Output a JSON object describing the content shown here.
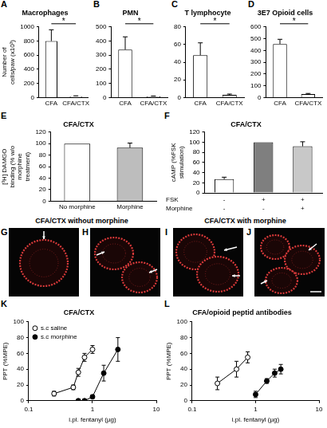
{
  "chart_data": [
    {
      "panel": "A",
      "type": "bar",
      "title": "Macrophages",
      "y_label": "Number of cells/paw (x10³)",
      "categories": [
        "CFA",
        "CFA/CTX"
      ],
      "values": [
        800,
        20
      ],
      "errors": [
        160,
        5
      ],
      "colors": [
        "#ffffff",
        "#ffffff"
      ],
      "ylim": [
        0,
        1000
      ],
      "yticks": [
        0,
        200,
        400,
        600,
        800,
        1000
      ],
      "annotation": "*"
    },
    {
      "panel": "B",
      "type": "bar",
      "title": "PMN",
      "categories": [
        "CFA",
        "CFA/CTX"
      ],
      "values": [
        340,
        8
      ],
      "errors": [
        90,
        3
      ],
      "colors": [
        "#ffffff",
        "#ffffff"
      ],
      "ylim": [
        0,
        500
      ],
      "yticks": [
        0,
        100,
        200,
        300,
        400,
        500
      ],
      "annotation": "*"
    },
    {
      "panel": "C",
      "type": "bar",
      "title": "T lymphocyte",
      "categories": [
        "CFA",
        "CFA/CTX"
      ],
      "values": [
        48,
        3
      ],
      "errors": [
        14,
        1
      ],
      "colors": [
        "#ffffff",
        "#ffffff"
      ],
      "ylim": [
        0,
        80
      ],
      "yticks": [
        0,
        20,
        40,
        60,
        80
      ],
      "annotation": "*"
    },
    {
      "panel": "D",
      "type": "bar",
      "title": "3E7 Opioid cells",
      "categories": [
        "CFA",
        "CFA/CTX"
      ],
      "values": [
        455,
        30
      ],
      "errors": [
        40,
        5
      ],
      "colors": [
        "#ffffff",
        "#ffffff"
      ],
      "ylim": [
        0,
        600
      ],
      "yticks": [
        0,
        100,
        200,
        300,
        400,
        500,
        600
      ],
      "annotation": "*"
    },
    {
      "panel": "E",
      "type": "bar",
      "title": "CFA/CTX",
      "y_label": "[³H] DAMGO binding (% w/o morphine treatment)",
      "categories": [
        "No morphine",
        "Morphine"
      ],
      "values": [
        100,
        93
      ],
      "errors": [
        0,
        8
      ],
      "colors": [
        "#ffffff",
        "#bdbdbd"
      ],
      "ylim": [
        0,
        120
      ],
      "yticks": [
        0,
        20,
        40,
        60,
        80,
        100,
        120
      ]
    },
    {
      "panel": "F",
      "type": "bar",
      "title": "CFA/CTX",
      "y_label": "cAMP (%FSK stimulation)",
      "categories": [
        null,
        null,
        null
      ],
      "values": [
        27,
        100,
        92
      ],
      "errors": [
        4,
        0,
        9
      ],
      "colors": [
        "#ffffff",
        "#7f7f7f",
        "#c8c8c8"
      ],
      "ylim": [
        0,
        120
      ],
      "yticks": [
        0,
        20,
        40,
        60,
        80,
        100,
        120
      ],
      "condition_rows": [
        {
          "label": "FSK",
          "values": [
            "-",
            "+",
            "+"
          ]
        },
        {
          "label": "Morphine",
          "values": [
            "-",
            "-",
            "+"
          ]
        }
      ]
    },
    {
      "panel": "K",
      "type": "line",
      "title": "CFA/CTX",
      "x_label": "i.pl. fentanyl (µg)",
      "y_label": "PPT (%MPE)",
      "log": "x",
      "xlim": [
        0.1,
        10
      ],
      "xticks": [
        0.1,
        1,
        10
      ],
      "ylim": [
        0,
        100
      ],
      "yticks": [
        0,
        20,
        40,
        60,
        80,
        100
      ],
      "legend": "upper left",
      "series": [
        {
          "name": "s.c saline",
          "color": "#000000",
          "marker": "circle_open",
          "x": [
            0.25,
            0.5,
            0.6,
            0.75,
            1.0
          ],
          "values": [
            9,
            17,
            36,
            55,
            65
          ],
          "errors": [
            3,
            3,
            5,
            5,
            5
          ]
        },
        {
          "name": "s.c morphine",
          "color": "#000000",
          "marker": "circle",
          "x": [
            0.6,
            0.75,
            1.0,
            1.5,
            2.5
          ],
          "values": [
            0,
            0,
            5,
            35,
            65
          ],
          "errors": [
            2,
            2,
            2,
            10,
            15
          ]
        }
      ]
    },
    {
      "panel": "L",
      "type": "line",
      "title": "CFA/opioid peptid antibodies",
      "x_label": "i.pl. fentanyl (µg)",
      "y_label": "PPT (%MPE)",
      "log": "x",
      "xlim": [
        0.1,
        10
      ],
      "xticks": [
        0.1,
        1,
        10
      ],
      "ylim": [
        0,
        100
      ],
      "yticks": [
        0,
        20,
        40,
        60,
        80,
        100
      ],
      "series": [
        {
          "color": "#000000",
          "marker": "circle_open",
          "x": [
            0.25,
            0.5,
            0.75
          ],
          "values": [
            22,
            40,
            55
          ],
          "errors": [
            8,
            10,
            7
          ]
        },
        {
          "color": "#000000",
          "marker": "circle",
          "x": [
            1.0,
            1.5,
            2.0,
            2.5
          ],
          "values": [
            8,
            25,
            35,
            40
          ],
          "errors": [
            4,
            3,
            5,
            6
          ]
        }
      ]
    }
  ],
  "micrographs": [
    {
      "panels": [
        "G",
        "H"
      ],
      "title": "CFA/CTX without morphine"
    },
    {
      "panels": [
        "I",
        "J"
      ],
      "title": "CFA/CTX with morphine"
    }
  ]
}
